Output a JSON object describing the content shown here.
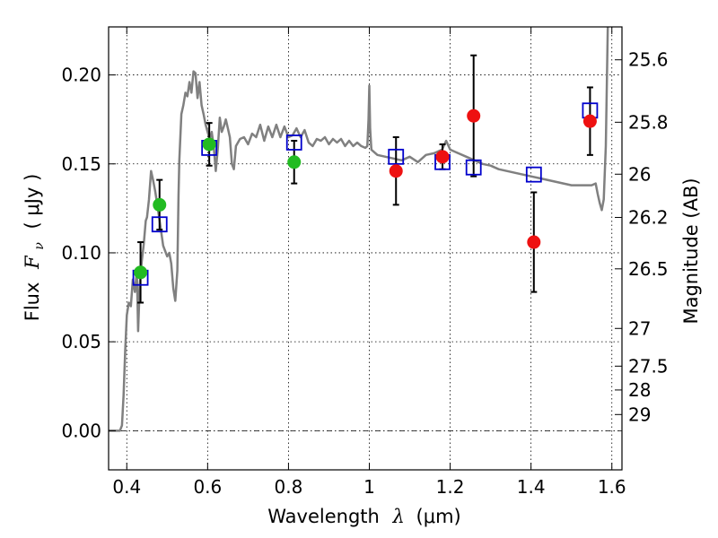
{
  "chart_data": {
    "type": "scatter",
    "xlabel": "Wavelength",
    "xlabel_symbol": "λ",
    "xlabel_unit": "(μm)",
    "ylabel": "Flux",
    "ylabel_symbol": "F",
    "ylabel_subscript": "ν",
    "ylabel_unit": "( μJy )",
    "y2label": "Magnitude (AB)",
    "xlim": [
      0.355,
      1.625
    ],
    "ylim": [
      -0.022,
      0.227
    ],
    "xticks": [
      0.4,
      0.6,
      0.8,
      1.0,
      1.2,
      1.4,
      1.6
    ],
    "xtick_labels": [
      "0.4",
      "0.6",
      "0.8",
      "1",
      "1.2",
      "1.4",
      "1.6"
    ],
    "yticks": [
      0.0,
      0.05,
      0.1,
      0.15,
      0.2
    ],
    "ytick_labels": [
      "0.00",
      "0.05",
      "0.10",
      "0.15",
      "0.20"
    ],
    "y2_ticks": [
      {
        "label": "25.6",
        "flux": 0.2085
      },
      {
        "label": "25.8",
        "flux": 0.1734
      },
      {
        "label": "26",
        "flux": 0.1442
      },
      {
        "label": "26.2",
        "flux": 0.1199
      },
      {
        "label": "26.5",
        "flux": 0.091
      },
      {
        "label": "27",
        "flux": 0.0575
      },
      {
        "label": "27.5",
        "flux": 0.0363
      },
      {
        "label": "28",
        "flux": 0.0229
      },
      {
        "label": "29",
        "flux": 0.0091
      }
    ],
    "grid": true,
    "colors": {
      "model": "#808080",
      "model_points": "#0000cc",
      "optical": "#22bb22",
      "infrared": "#ee1111",
      "errorbar": "#000000"
    },
    "series": [
      {
        "name": "model SED",
        "kind": "line",
        "points": [
          [
            0.355,
            0.0
          ],
          [
            0.383,
            0.0
          ],
          [
            0.388,
            0.003
          ],
          [
            0.392,
            0.02
          ],
          [
            0.396,
            0.045
          ],
          [
            0.4,
            0.065
          ],
          [
            0.405,
            0.072
          ],
          [
            0.41,
            0.07
          ],
          [
            0.415,
            0.085
          ],
          [
            0.42,
            0.078
          ],
          [
            0.425,
            0.09
          ],
          [
            0.428,
            0.056
          ],
          [
            0.432,
            0.082
          ],
          [
            0.437,
            0.095
          ],
          [
            0.442,
            0.105
          ],
          [
            0.447,
            0.118
          ],
          [
            0.45,
            0.12
          ],
          [
            0.455,
            0.13
          ],
          [
            0.46,
            0.146
          ],
          [
            0.465,
            0.141
          ],
          [
            0.47,
            0.135
          ],
          [
            0.475,
            0.128
          ],
          [
            0.48,
            0.12
          ],
          [
            0.49,
            0.104
          ],
          [
            0.5,
            0.098
          ],
          [
            0.505,
            0.1
          ],
          [
            0.51,
            0.094
          ],
          [
            0.515,
            0.08
          ],
          [
            0.52,
            0.073
          ],
          [
            0.525,
            0.09
          ],
          [
            0.528,
            0.132
          ],
          [
            0.53,
            0.152
          ],
          [
            0.535,
            0.178
          ],
          [
            0.54,
            0.183
          ],
          [
            0.545,
            0.19
          ],
          [
            0.55,
            0.188
          ],
          [
            0.555,
            0.196
          ],
          [
            0.56,
            0.19
          ],
          [
            0.565,
            0.202
          ],
          [
            0.57,
            0.201
          ],
          [
            0.575,
            0.187
          ],
          [
            0.58,
            0.196
          ],
          [
            0.585,
            0.183
          ],
          [
            0.59,
            0.178
          ],
          [
            0.595,
            0.172
          ],
          [
            0.6,
            0.168
          ],
          [
            0.605,
            0.164
          ],
          [
            0.61,
            0.168
          ],
          [
            0.615,
            0.16
          ],
          [
            0.62,
            0.146
          ],
          [
            0.625,
            0.158
          ],
          [
            0.63,
            0.176
          ],
          [
            0.635,
            0.168
          ],
          [
            0.64,
            0.171
          ],
          [
            0.645,
            0.175
          ],
          [
            0.65,
            0.17
          ],
          [
            0.655,
            0.165
          ],
          [
            0.66,
            0.15
          ],
          [
            0.665,
            0.147
          ],
          [
            0.67,
            0.16
          ],
          [
            0.68,
            0.164
          ],
          [
            0.69,
            0.165
          ],
          [
            0.7,
            0.161
          ],
          [
            0.71,
            0.167
          ],
          [
            0.72,
            0.165
          ],
          [
            0.73,
            0.172
          ],
          [
            0.74,
            0.163
          ],
          [
            0.75,
            0.171
          ],
          [
            0.76,
            0.165
          ],
          [
            0.77,
            0.172
          ],
          [
            0.78,
            0.165
          ],
          [
            0.79,
            0.171
          ],
          [
            0.8,
            0.165
          ],
          [
            0.81,
            0.166
          ],
          [
            0.82,
            0.17
          ],
          [
            0.83,
            0.165
          ],
          [
            0.84,
            0.169
          ],
          [
            0.85,
            0.162
          ],
          [
            0.86,
            0.16
          ],
          [
            0.87,
            0.164
          ],
          [
            0.88,
            0.163
          ],
          [
            0.89,
            0.165
          ],
          [
            0.9,
            0.161
          ],
          [
            0.91,
            0.164
          ],
          [
            0.92,
            0.162
          ],
          [
            0.93,
            0.164
          ],
          [
            0.94,
            0.16
          ],
          [
            0.95,
            0.163
          ],
          [
            0.96,
            0.16
          ],
          [
            0.97,
            0.162
          ],
          [
            0.98,
            0.16
          ],
          [
            0.99,
            0.159
          ],
          [
            0.995,
            0.16
          ],
          [
            0.998,
            0.175
          ],
          [
            1.0,
            0.194
          ],
          [
            1.002,
            0.17
          ],
          [
            1.005,
            0.158
          ],
          [
            1.02,
            0.155
          ],
          [
            1.04,
            0.154
          ],
          [
            1.06,
            0.153
          ],
          [
            1.08,
            0.152
          ],
          [
            1.1,
            0.154
          ],
          [
            1.12,
            0.151
          ],
          [
            1.14,
            0.155
          ],
          [
            1.16,
            0.156
          ],
          [
            1.18,
            0.158
          ],
          [
            1.19,
            0.163
          ],
          [
            1.2,
            0.158
          ],
          [
            1.22,
            0.156
          ],
          [
            1.24,
            0.154
          ],
          [
            1.26,
            0.152
          ],
          [
            1.28,
            0.15
          ],
          [
            1.3,
            0.149
          ],
          [
            1.32,
            0.147
          ],
          [
            1.34,
            0.146
          ],
          [
            1.36,
            0.145
          ],
          [
            1.38,
            0.144
          ],
          [
            1.4,
            0.143
          ],
          [
            1.42,
            0.142
          ],
          [
            1.44,
            0.141
          ],
          [
            1.46,
            0.14
          ],
          [
            1.48,
            0.139
          ],
          [
            1.5,
            0.138
          ],
          [
            1.52,
            0.138
          ],
          [
            1.55,
            0.138
          ],
          [
            1.56,
            0.139
          ],
          [
            1.565,
            0.133
          ],
          [
            1.57,
            0.128
          ],
          [
            1.575,
            0.124
          ],
          [
            1.58,
            0.13
          ],
          [
            1.585,
            0.16
          ],
          [
            1.59,
            0.227
          ]
        ]
      },
      {
        "name": "model photometry",
        "kind": "square",
        "points": [
          [
            0.434,
            0.086
          ],
          [
            0.481,
            0.116
          ],
          [
            0.604,
            0.159
          ],
          [
            0.814,
            0.162
          ],
          [
            1.066,
            0.154
          ],
          [
            1.181,
            0.151
          ],
          [
            1.258,
            0.148
          ],
          [
            1.407,
            0.144
          ],
          [
            1.546,
            0.18
          ]
        ]
      },
      {
        "name": "optical photometry",
        "kind": "circle",
        "points": [
          [
            0.434,
            0.089,
            0.017
          ],
          [
            0.481,
            0.127,
            0.014
          ],
          [
            0.604,
            0.161,
            0.012
          ],
          [
            0.814,
            0.151,
            0.012
          ]
        ]
      },
      {
        "name": "infrared photometry",
        "kind": "circle",
        "points": [
          [
            1.066,
            0.146,
            0.019
          ],
          [
            1.181,
            0.154,
            0.007
          ],
          [
            1.258,
            0.177,
            0.034
          ],
          [
            1.407,
            0.106,
            0.028
          ],
          [
            1.546,
            0.174,
            0.019
          ]
        ]
      }
    ]
  }
}
